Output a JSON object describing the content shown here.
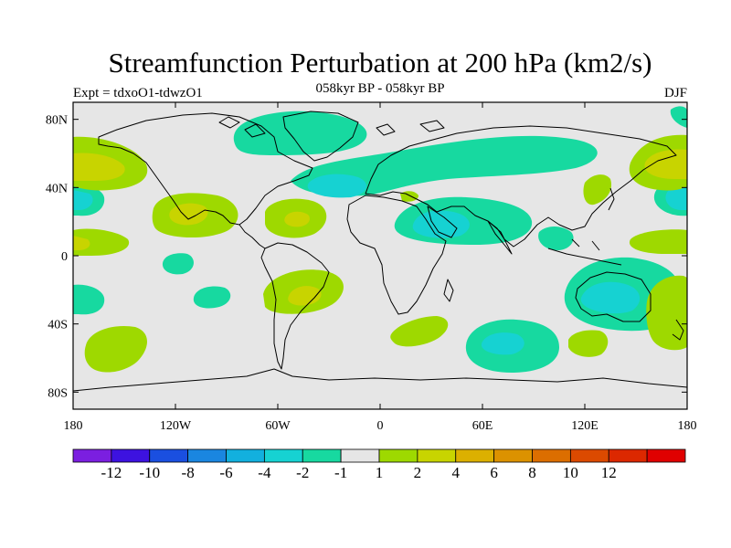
{
  "title": "Streamfunction Perturbation at 200 hPa (km2/s)",
  "subtitle_left": "Expt = tdxoO1-tdwzO1",
  "subtitle_center": "058kyr BP - 058kyr BP",
  "subtitle_right": "DJF",
  "chart_data": {
    "type": "heatmap",
    "projection": "cylindrical-equidistant",
    "variable": "Streamfunction Perturbation at 200 hPa",
    "units": "km2/s",
    "season": "DJF",
    "lon_range": [
      -180,
      180
    ],
    "lat_range": [
      -90,
      90
    ],
    "x_ticks": [
      {
        "value": -180,
        "label": "180"
      },
      {
        "value": -120,
        "label": "120W"
      },
      {
        "value": -60,
        "label": "60W"
      },
      {
        "value": 0,
        "label": "0"
      },
      {
        "value": 60,
        "label": "60E"
      },
      {
        "value": 120,
        "label": "120E"
      },
      {
        "value": 180,
        "label": "180"
      }
    ],
    "y_ticks": [
      {
        "value": 80,
        "label": "80N"
      },
      {
        "value": 40,
        "label": "40N"
      },
      {
        "value": 0,
        "label": "0"
      },
      {
        "value": -40,
        "label": "40S"
      },
      {
        "value": -80,
        "label": "80S"
      }
    ],
    "colorbar": {
      "colors": [
        "#7b1fe0",
        "#3d12e0",
        "#1a4fe0",
        "#1a86e0",
        "#12b0de",
        "#16d2d2",
        "#17d9a0",
        "#e6e6e6",
        "#9ed900",
        "#c8d400",
        "#dcb000",
        "#dc9200",
        "#dc6e00",
        "#dc4a00",
        "#dc2800",
        "#e00000"
      ],
      "labels": [
        "-12",
        "-10",
        "-8",
        "-6",
        "-4",
        "-2",
        "-1",
        "1",
        "2",
        "4",
        "6",
        "8",
        "10",
        "12"
      ]
    },
    "contour_regions": [
      {
        "level": "-2 to -1",
        "lon_center": -30,
        "lat_center": 68
      },
      {
        "level": "-2 to -1",
        "lon_center": 30,
        "lat_center": 46
      },
      {
        "level": "-4 to -2",
        "lon_center": -5,
        "lat_center": 40
      },
      {
        "level": "-2 to -1",
        "lon_center": 50,
        "lat_center": 18
      },
      {
        "level": "-4 to -2",
        "lon_center": 45,
        "lat_center": 18
      },
      {
        "level": "-2 to -1",
        "lon_center": 122,
        "lat_center": -22
      },
      {
        "level": "-4 to -2",
        "lon_center": 125,
        "lat_center": -24
      },
      {
        "level": "-2 to -1",
        "lon_center": 72,
        "lat_center": -52
      },
      {
        "level": "-4 to -2",
        "lon_center": 70,
        "lat_center": -50
      },
      {
        "level": "-2 to -1",
        "lon_center": -105,
        "lat_center": -23
      },
      {
        "level": "-2 to -1",
        "lon_center": -118,
        "lat_center": -4
      },
      {
        "level": "-2 to -1",
        "lon_center": 180,
        "lat_center": 30
      },
      {
        "level": "-2 to -1",
        "lon_center": -180,
        "lat_center": 30
      },
      {
        "level": "1 to 2",
        "lon_center": -155,
        "lat_center": 53
      },
      {
        "level": "2 to 4",
        "lon_center": -160,
        "lat_center": 50
      },
      {
        "level": "1 to 2",
        "lon_center": -90,
        "lat_center": 22
      },
      {
        "level": "2 to 4",
        "lon_center": -90,
        "lat_center": 23
      },
      {
        "level": "1 to 2",
        "lon_center": -50,
        "lat_center": 20
      },
      {
        "level": "1 to 2",
        "lon_center": -45,
        "lat_center": -23
      },
      {
        "level": "1 to 2",
        "lon_center": -160,
        "lat_center": -50
      },
      {
        "level": "1 to 2",
        "lon_center": 168,
        "lat_center": 50
      },
      {
        "level": "2 to 4",
        "lon_center": 168,
        "lat_center": 55
      },
      {
        "level": "1 to 2",
        "lon_center": 165,
        "lat_center": -30
      },
      {
        "level": "1 to 2",
        "lon_center": 40,
        "lat_center": -43
      },
      {
        "level": "1 to 2",
        "lon_center": 112,
        "lat_center": -48
      }
    ]
  }
}
